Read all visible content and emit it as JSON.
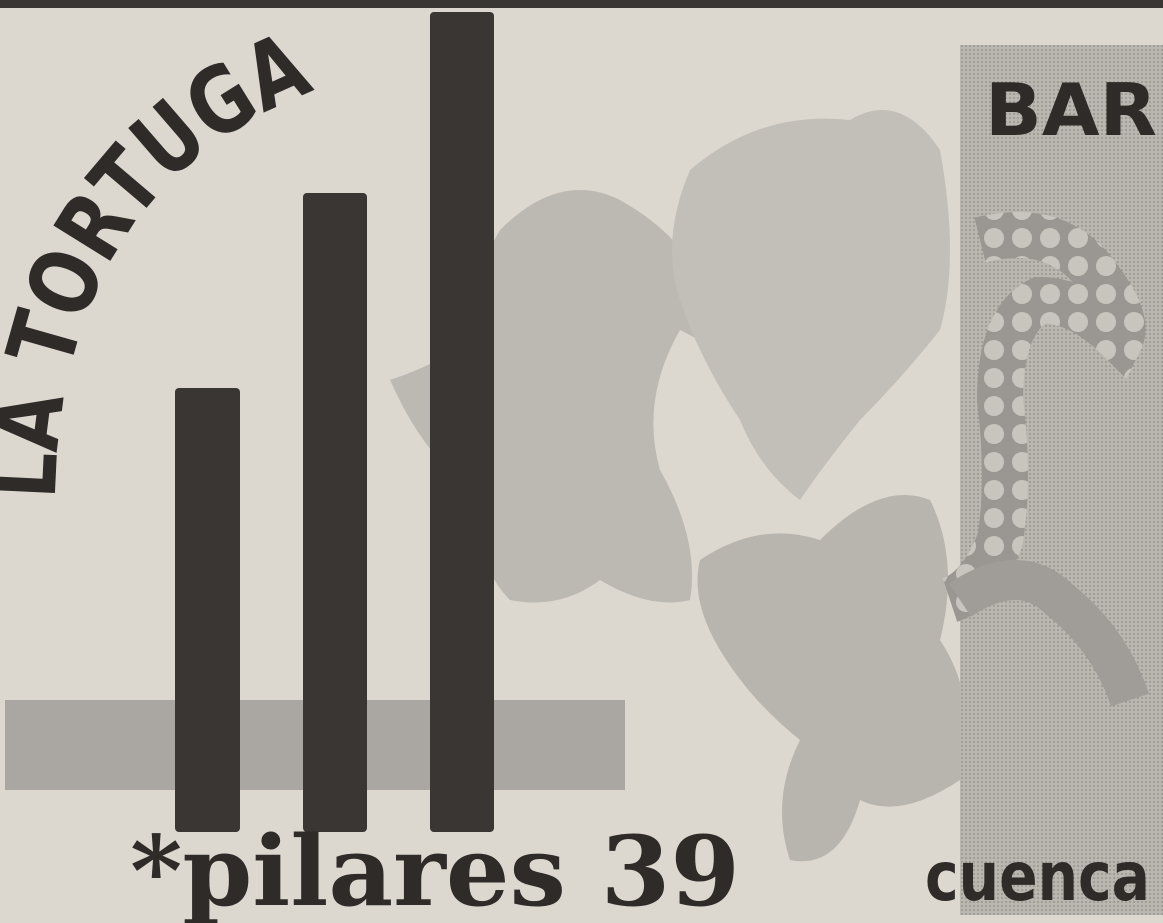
{
  "poster": {
    "title": "LA TORTUGA",
    "label": "BAR",
    "address": "*pilares 39",
    "city": "cuenca"
  }
}
